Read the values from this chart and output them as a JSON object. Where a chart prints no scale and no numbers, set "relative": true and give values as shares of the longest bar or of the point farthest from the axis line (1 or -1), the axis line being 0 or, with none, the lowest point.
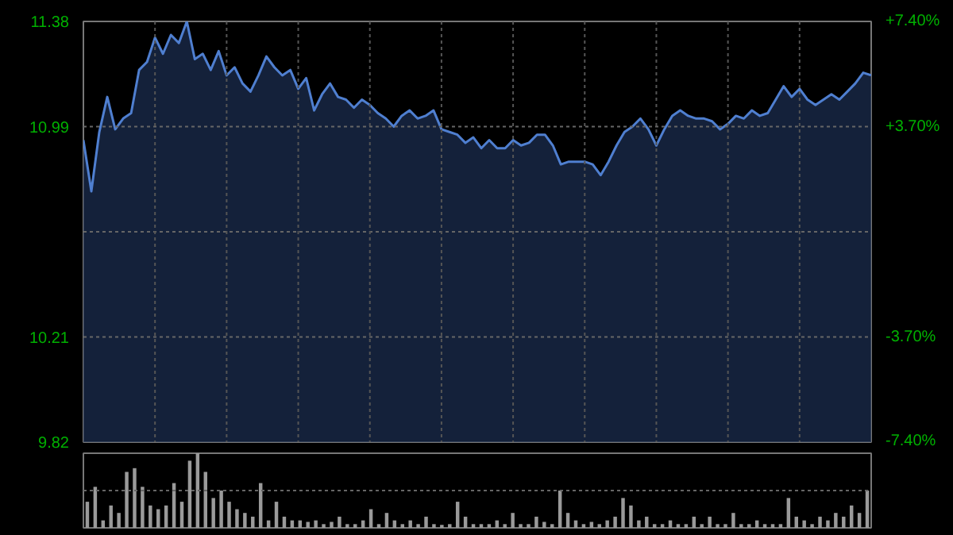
{
  "chart_data": [
    {
      "type": "area",
      "categories": [
        null,
        null,
        null,
        null,
        null,
        null,
        null,
        null,
        null,
        null,
        null,
        null,
        null,
        null,
        null,
        null,
        null,
        null,
        null,
        null,
        null,
        null,
        null,
        null,
        null,
        null,
        null,
        null,
        null,
        null,
        null,
        null,
        null,
        null,
        null,
        null,
        null,
        null,
        null,
        null,
        null,
        null,
        null,
        null,
        null,
        null,
        null,
        null,
        null,
        null,
        null,
        null,
        null,
        null,
        null,
        null,
        null,
        null,
        null,
        null,
        null,
        null,
        null,
        null,
        null,
        null,
        null,
        null,
        null,
        null,
        null,
        null,
        null,
        null,
        null,
        null,
        null,
        null,
        null,
        null,
        null,
        null,
        null,
        null,
        null,
        null,
        null,
        null,
        null,
        null,
        null,
        null,
        null,
        null,
        null,
        null,
        null,
        null,
        null,
        null
      ],
      "series": [
        {
          "color": "#4f7fd0",
          "values": [
            10.94,
            10.75,
            10.97,
            11.1,
            10.98,
            11.02,
            11.04,
            11.2,
            11.23,
            11.32,
            11.26,
            11.33,
            11.3,
            11.38,
            11.24,
            11.26,
            11.2,
            11.27,
            11.18,
            11.21,
            11.15,
            11.12,
            11.18,
            11.25,
            11.21,
            11.18,
            11.2,
            11.13,
            11.17,
            11.05,
            11.11,
            11.15,
            11.1,
            11.09,
            11.06,
            11.09,
            11.07,
            11.04,
            11.02,
            10.99,
            11.03,
            11.05,
            11.02,
            11.03,
            11.05,
            10.98,
            10.97,
            10.96,
            10.93,
            10.95,
            10.91,
            10.94,
            10.91,
            10.91,
            10.94,
            10.92,
            10.93,
            10.96,
            10.96,
            10.92,
            10.85,
            10.86,
            10.86,
            10.86,
            10.85,
            10.81,
            10.86,
            10.92,
            10.97,
            10.99,
            11.02,
            10.98,
            10.92,
            10.98,
            11.03,
            11.05,
            11.03,
            11.02,
            11.02,
            11.01,
            10.98,
            11.0,
            11.03,
            11.02,
            11.05,
            11.03,
            11.04,
            11.09,
            11.14,
            11.1,
            11.13,
            11.09,
            11.07,
            11.09,
            11.11,
            11.09,
            11.12,
            11.15,
            11.19,
            11.18
          ]
        }
      ],
      "ylim": [
        9.82,
        11.38
      ],
      "yticks": [
        9.82,
        10.21,
        {
          "value": 10.6,
          "label": null
        },
        10.99,
        11.38
      ],
      "y2lim": [
        -7.4,
        7.4
      ],
      "y2ticks": [
        {
          "value": -7.4,
          "label": "-7.40%"
        },
        {
          "value": -3.7,
          "label": "-3.70%"
        },
        {
          "value": 3.7,
          "label": "+3.70%"
        },
        {
          "value": 7.4,
          "label": "+7.40%"
        }
      ],
      "tick_labels": "y",
      "grid": true
    },
    {
      "type": "bar",
      "relative": true,
      "color": "#9a9a9a",
      "ref_lines": [
        {
          "axis": "y",
          "value": 0.5
        }
      ],
      "categories": [
        null,
        null,
        null,
        null,
        null,
        null,
        null,
        null,
        null,
        null,
        null,
        null,
        null,
        null,
        null,
        null,
        null,
        null,
        null,
        null,
        null,
        null,
        null,
        null,
        null,
        null,
        null,
        null,
        null,
        null,
        null,
        null,
        null,
        null,
        null,
        null,
        null,
        null,
        null,
        null,
        null,
        null,
        null,
        null,
        null,
        null,
        null,
        null,
        null,
        null,
        null,
        null,
        null,
        null,
        null,
        null,
        null,
        null,
        null,
        null,
        null,
        null,
        null,
        null,
        null,
        null,
        null,
        null,
        null,
        null,
        null,
        null,
        null,
        null,
        null,
        null,
        null,
        null,
        null,
        null,
        null,
        null,
        null,
        null,
        null,
        null,
        null,
        null,
        null,
        null,
        null,
        null,
        null,
        null,
        null,
        null,
        null,
        null,
        null,
        null
      ],
      "values": [
        0.35,
        0.55,
        0.1,
        0.3,
        0.2,
        0.75,
        0.8,
        0.55,
        0.3,
        0.25,
        0.3,
        0.6,
        0.35,
        0.9,
        1.0,
        0.75,
        0.4,
        0.5,
        0.35,
        0.25,
        0.2,
        0.15,
        0.6,
        0.1,
        0.35,
        0.15,
        0.1,
        0.1,
        0.08,
        0.1,
        0.05,
        0.08,
        0.15,
        0.05,
        0.05,
        0.1,
        0.25,
        0.05,
        0.2,
        0.1,
        0.05,
        0.1,
        0.05,
        0.15,
        0.05,
        0.04,
        0.05,
        0.35,
        0.15,
        0.05,
        0.05,
        0.05,
        0.1,
        0.05,
        0.2,
        0.05,
        0.05,
        0.15,
        0.08,
        0.05,
        0.5,
        0.2,
        0.1,
        0.05,
        0.08,
        0.05,
        0.1,
        0.15,
        0.4,
        0.3,
        0.1,
        0.15,
        0.05,
        0.05,
        0.1,
        0.05,
        0.05,
        0.15,
        0.05,
        0.15,
        0.05,
        0.05,
        0.2,
        0.05,
        0.05,
        0.1,
        0.05,
        0.05,
        0.05,
        0.4,
        0.15,
        0.1,
        0.05,
        0.15,
        0.1,
        0.2,
        0.15,
        0.3,
        0.2,
        0.5
      ]
    }
  ]
}
